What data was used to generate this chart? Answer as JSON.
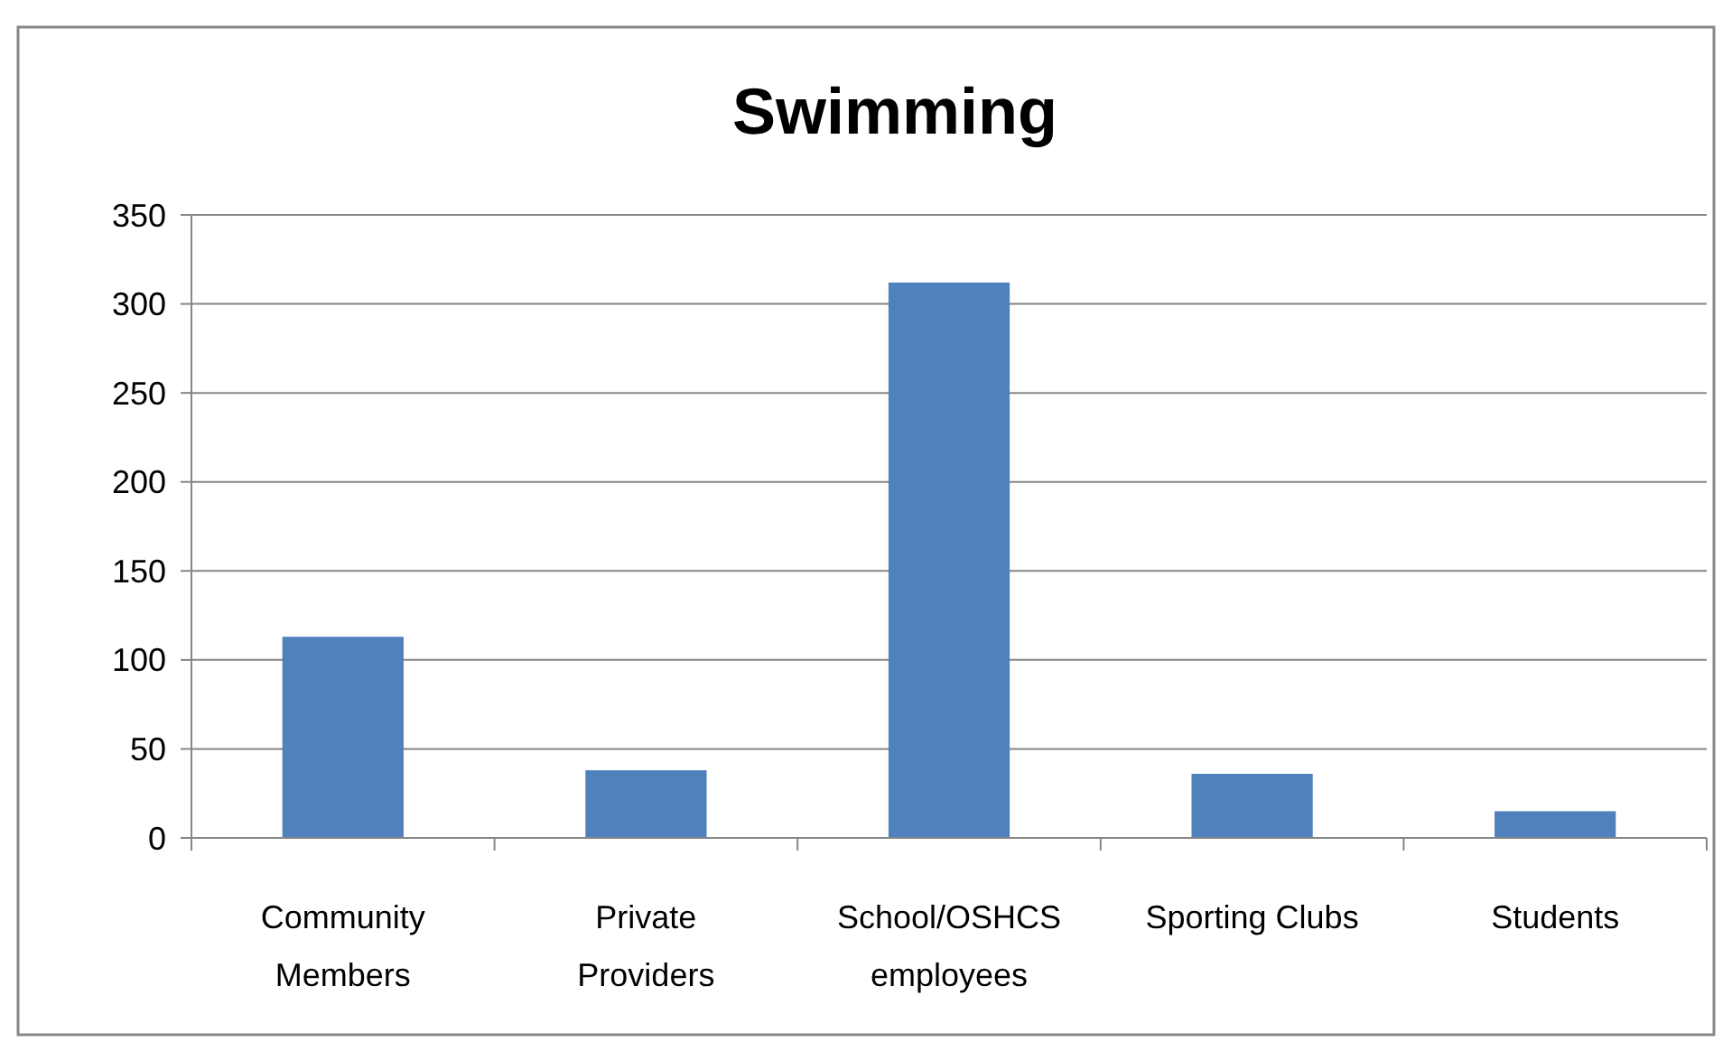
{
  "chart_data": {
    "type": "bar",
    "title": "Swimming",
    "categories": [
      "Community Members",
      "Private Providers",
      "School/OSHCS employees",
      "Sporting Clubs",
      "Students"
    ],
    "values": [
      113,
      38,
      312,
      36,
      15
    ],
    "color": "#4f81bd",
    "ylim": [
      0,
      350
    ],
    "yticks": [
      0,
      50,
      100,
      150,
      200,
      250,
      300,
      350
    ],
    "grid": "y"
  }
}
